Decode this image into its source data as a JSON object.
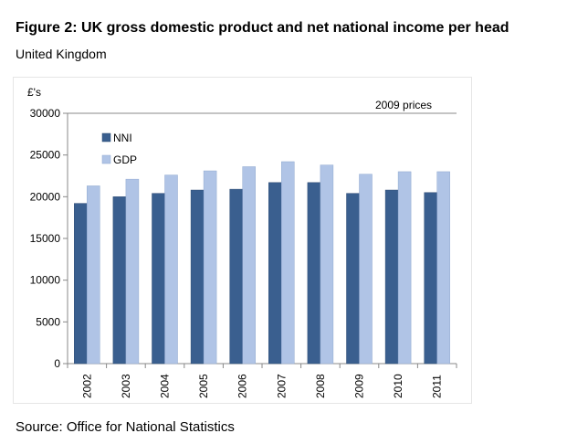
{
  "figure": {
    "title": "Figure 2: UK gross domestic product and net national income per head",
    "subtitle": "United Kingdom",
    "source": "Source: Office for National Statistics"
  },
  "chart_data": {
    "type": "bar",
    "ylabel": "£'s",
    "annotation": "2009 prices",
    "categories": [
      "2002",
      "2003",
      "2004",
      "2005",
      "2006",
      "2007",
      "2008",
      "2009",
      "2010",
      "2011"
    ],
    "series": [
      {
        "name": "NNI",
        "color": "#3a5f8f",
        "values": [
          19200,
          20000,
          20400,
          20800,
          20900,
          21700,
          21700,
          20400,
          20800,
          20500
        ]
      },
      {
        "name": "GDP",
        "color": "#b0c4e6",
        "values": [
          21300,
          22100,
          22600,
          23100,
          23600,
          24200,
          23800,
          22700,
          23000,
          23000
        ]
      }
    ],
    "ylim": [
      0,
      30000
    ],
    "yticks": [
      0,
      5000,
      10000,
      15000,
      20000,
      25000,
      30000
    ],
    "grid": false,
    "legend": "top-left"
  }
}
